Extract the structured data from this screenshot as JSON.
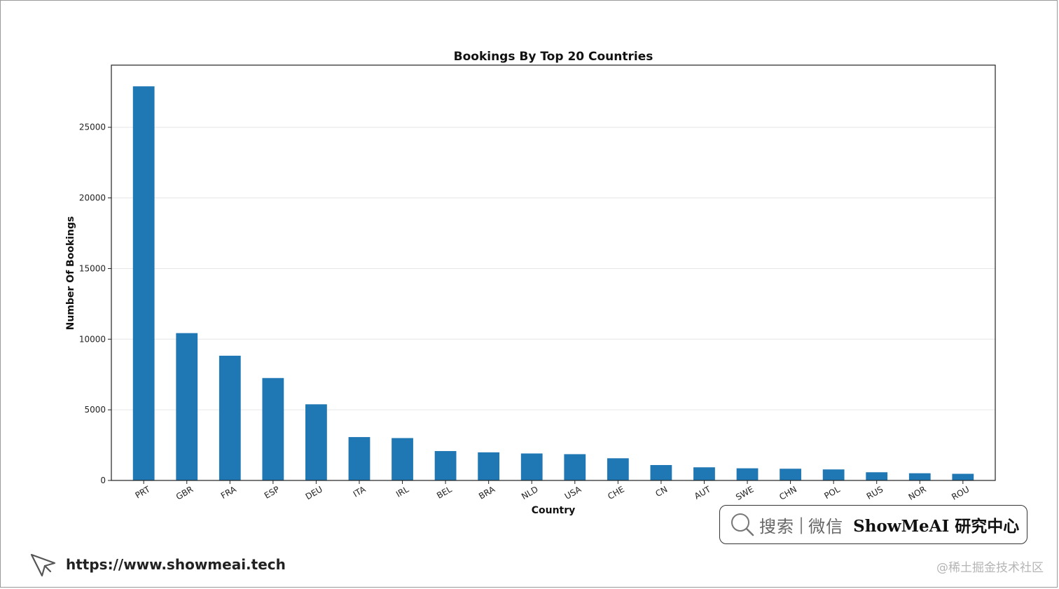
{
  "chart_data": {
    "type": "bar",
    "title": "Bookings By Top 20 Countries",
    "xlabel": "Country",
    "ylabel": "Number Of Bookings",
    "categories": [
      "PRT",
      "GBR",
      "FRA",
      "ESP",
      "DEU",
      "ITA",
      "IRL",
      "BEL",
      "BRA",
      "NLD",
      "USA",
      "CHE",
      "CN",
      "AUT",
      "SWE",
      "CHN",
      "POL",
      "RUS",
      "NOR",
      "ROU"
    ],
    "values": [
      27900,
      10430,
      8830,
      7250,
      5390,
      3070,
      3000,
      2080,
      1990,
      1910,
      1860,
      1570,
      1090,
      930,
      860,
      830,
      780,
      580,
      510,
      470
    ],
    "ylim": [
      0,
      29400
    ],
    "yticks": [
      0,
      5000,
      10000,
      15000,
      20000,
      25000
    ],
    "grid": "horizontal",
    "bar_color": "#1f77b4"
  },
  "search_banner": {
    "search_label": "搜索",
    "separator": "|",
    "wechat_label": "微信",
    "brand": "ShowMeAI 研究中心"
  },
  "footer": {
    "url": "https://www.showmeai.tech",
    "watermark": "@稀土掘金技术社区"
  },
  "icons": {
    "search": "magnifier-icon",
    "cursor": "cursor-arrow-icon"
  }
}
